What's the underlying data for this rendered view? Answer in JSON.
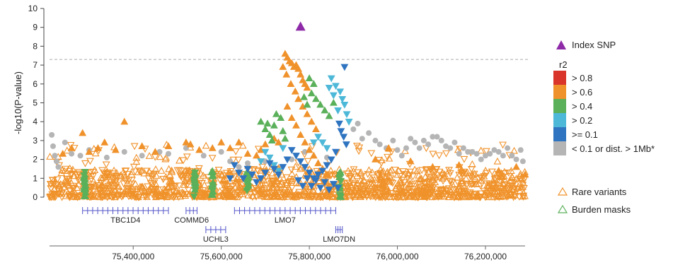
{
  "chart_data": {
    "type": "scatter",
    "title": "",
    "xlabel": "",
    "ylabel": "-log10(P-value)",
    "xlim": [
      75210000,
      76290000
    ],
    "ylim": [
      0,
      10
    ],
    "x_ticks": [
      75400000,
      75600000,
      75800000,
      76000000,
      76200000
    ],
    "x_tick_labels": [
      "75,400,000",
      "75,600,000",
      "75,800,000",
      "76,000,000",
      "76,200,000"
    ],
    "y_ticks": [
      0,
      1,
      2,
      3,
      4,
      5,
      6,
      7,
      8,
      9,
      10
    ],
    "y_tick_labels": [
      "0",
      "1",
      "2",
      "3",
      "4",
      "5",
      "6",
      "7",
      "8",
      "9",
      "10"
    ],
    "significance_line": 7.3,
    "grid": false,
    "legend_position": "right",
    "colors": {
      "index": "#8e2aa8",
      "r2_08": "#d9352b",
      "r2_06": "#f0922b",
      "r2_04": "#5bb05a",
      "r2_02": "#4db8d8",
      "r2_01": "#2f74c0",
      "r2_low": "#b5b5b5",
      "rare": "#f0922b",
      "burden": "#5bb05a",
      "gene": "#5557c9"
    },
    "index_snp": {
      "x": 75780000,
      "y": 9.05
    },
    "series": [
      {
        "name": "< 0.1 or dist. > 1Mb*",
        "marker": "circle",
        "color": "#b5b5b5",
        "points": [
          [
            75215000,
            3.3
          ],
          [
            75218000,
            2.7
          ],
          [
            75222000,
            2.2
          ],
          [
            75226000,
            1.9
          ],
          [
            75230000,
            1.6
          ],
          [
            75245000,
            2.9
          ],
          [
            75260000,
            2.3
          ],
          [
            75280000,
            2.2
          ],
          [
            75300000,
            2.5
          ],
          [
            75340000,
            2.1
          ],
          [
            75380000,
            2.4
          ],
          [
            75420000,
            2.2
          ],
          [
            75460000,
            2.4
          ],
          [
            75480000,
            2.3
          ],
          [
            75520000,
            2.6
          ],
          [
            75560000,
            2.2
          ],
          [
            75600000,
            2.4
          ],
          [
            75620000,
            1.9
          ],
          [
            75640000,
            1.6
          ],
          [
            75660000,
            1.8
          ],
          [
            75700000,
            1.9
          ],
          [
            75760000,
            2.0
          ],
          [
            75790000,
            2.4
          ],
          [
            75840000,
            2.1
          ],
          [
            75900000,
            3.6
          ],
          [
            75910000,
            3.9
          ],
          [
            75920000,
            3.1
          ],
          [
            75935000,
            3.4
          ],
          [
            75950000,
            3.0
          ],
          [
            75960000,
            2.8
          ],
          [
            75975000,
            2.6
          ],
          [
            75990000,
            3.0
          ],
          [
            76000000,
            2.5
          ],
          [
            76010000,
            2.2
          ],
          [
            76020000,
            2.6
          ],
          [
            76030000,
            3.1
          ],
          [
            76040000,
            2.9
          ],
          [
            76050000,
            2.6
          ],
          [
            76060000,
            3.0
          ],
          [
            76070000,
            2.8
          ],
          [
            76080000,
            3.2
          ],
          [
            76090000,
            3.2
          ],
          [
            76100000,
            3.0
          ],
          [
            76110000,
            2.7
          ],
          [
            76120000,
            2.6
          ],
          [
            76130000,
            2.9
          ],
          [
            76140000,
            2.3
          ],
          [
            76150000,
            2.6
          ],
          [
            76160000,
            2.4
          ],
          [
            76170000,
            2.4
          ],
          [
            76180000,
            2.3
          ],
          [
            76190000,
            2.0
          ],
          [
            76200000,
            2.2
          ],
          [
            76210000,
            2.3
          ],
          [
            76220000,
            2.5
          ],
          [
            76230000,
            2.4
          ],
          [
            76240000,
            2.2
          ],
          [
            76250000,
            2.6
          ],
          [
            76260000,
            2.2
          ],
          [
            76270000,
            2.0
          ],
          [
            76280000,
            2.5
          ],
          [
            76285000,
            1.9
          ]
        ]
      },
      {
        "name": "> 0.6",
        "marker": "triangle-up",
        "color": "#f0922b",
        "points": [
          [
            75745000,
            7.6
          ],
          [
            75750000,
            7.4
          ],
          [
            75755000,
            7.2
          ],
          [
            75760000,
            7.1
          ],
          [
            75765000,
            6.9
          ],
          [
            75770000,
            7.0
          ],
          [
            75775000,
            6.8
          ],
          [
            75780000,
            6.5
          ],
          [
            75785000,
            6.2
          ],
          [
            75790000,
            6.0
          ],
          [
            75795000,
            5.8
          ],
          [
            75740000,
            6.9
          ],
          [
            75748000,
            6.5
          ],
          [
            75758000,
            6.0
          ],
          [
            75768000,
            5.6
          ],
          [
            75775000,
            5.2
          ],
          [
            75785000,
            4.8
          ],
          [
            75795000,
            4.4
          ],
          [
            75805000,
            4.0
          ],
          [
            75815000,
            3.6
          ],
          [
            75750000,
            4.8
          ],
          [
            75760000,
            4.2
          ],
          [
            75770000,
            3.8
          ],
          [
            75780000,
            3.3
          ],
          [
            75790000,
            2.9
          ],
          [
            75800000,
            2.5
          ],
          [
            75810000,
            2.2
          ],
          [
            75820000,
            1.8
          ],
          [
            75830000,
            1.5
          ],
          [
            75840000,
            1.2
          ],
          [
            75700000,
            2.8
          ],
          [
            75690000,
            2.5
          ],
          [
            75680000,
            2.2
          ],
          [
            75720000,
            3.1
          ],
          [
            75730000,
            2.9
          ],
          [
            75380000,
            4.0
          ],
          [
            75285000,
            3.4
          ],
          [
            75335000,
            2.9
          ],
          [
            75320000,
            2.6
          ],
          [
            75520000,
            2.9
          ],
          [
            75530000,
            2.8
          ],
          [
            75550000,
            2.5
          ],
          [
            75580000,
            2.6
          ],
          [
            75600000,
            2.9
          ],
          [
            75620000,
            2.6
          ],
          [
            75640000,
            2.9
          ],
          [
            75660000,
            2.3
          ],
          [
            75480000,
            2.7
          ],
          [
            75450000,
            2.4
          ],
          [
            75420000,
            2.7
          ],
          [
            75360000,
            2.5
          ],
          [
            75300000,
            2.4
          ],
          [
            75260000,
            2.6
          ],
          [
            75240000,
            2.3
          ],
          [
            75950000,
            2.0
          ],
          [
            75980000,
            2.6
          ],
          [
            76030000,
            1.9
          ],
          [
            76080000,
            1.6
          ],
          [
            76140000,
            1.7
          ],
          [
            76230000,
            1.4
          ],
          [
            76270000,
            1.6
          ],
          [
            76290000,
            1.2
          ]
        ]
      },
      {
        "name": "> 0.4",
        "marker": "triangle-up",
        "color": "#5bb05a",
        "points": [
          [
            75690000,
            4.0
          ],
          [
            75700000,
            3.6
          ],
          [
            75710000,
            3.3
          ],
          [
            75720000,
            3.8
          ],
          [
            75725000,
            4.4
          ],
          [
            75735000,
            4.2
          ],
          [
            75740000,
            3.5
          ],
          [
            75745000,
            3.1
          ],
          [
            75705000,
            3.9
          ],
          [
            75715000,
            3.0
          ],
          [
            75800000,
            6.3
          ],
          [
            75810000,
            6.0
          ],
          [
            75805000,
            5.5
          ],
          [
            75815000,
            5.2
          ],
          [
            75825000,
            4.9
          ],
          [
            75835000,
            4.6
          ],
          [
            75845000,
            4.3
          ],
          [
            75855000,
            5.0
          ],
          [
            75795000,
            4.9
          ],
          [
            75788000,
            5.3
          ],
          [
            75290000,
            1.2
          ],
          [
            75290000,
            0.8
          ],
          [
            75290000,
            0.4
          ],
          [
            75540000,
            1.2
          ],
          [
            75540000,
            0.8
          ],
          [
            75540000,
            0.4
          ],
          [
            75580000,
            1.1
          ],
          [
            75580000,
            0.7
          ],
          [
            75660000,
            1.0
          ],
          [
            75660000,
            0.6
          ]
        ]
      },
      {
        "name": "> 0.2",
        "marker": "triangle-down",
        "color": "#4db8d8",
        "points": [
          [
            75850000,
            6.3
          ],
          [
            75860000,
            5.9
          ],
          [
            75870000,
            5.6
          ],
          [
            75875000,
            5.2
          ],
          [
            75880000,
            4.9
          ],
          [
            75885000,
            4.4
          ],
          [
            75890000,
            4.0
          ],
          [
            75865000,
            4.6
          ],
          [
            75855000,
            5.4
          ],
          [
            75845000,
            5.8
          ],
          [
            75700000,
            2.4
          ],
          [
            75710000,
            2.1
          ],
          [
            75720000,
            1.7
          ],
          [
            75730000,
            1.4
          ],
          [
            75740000,
            2.6
          ],
          [
            75690000,
            1.9
          ],
          [
            75820000,
            3.2
          ],
          [
            75830000,
            2.9
          ],
          [
            75840000,
            2.6
          ],
          [
            75810000,
            2.9
          ]
        ]
      },
      {
        "name": ">= 0.1",
        "marker": "triangle-down",
        "color": "#2f74c0",
        "points": [
          [
            75880000,
            6.9
          ],
          [
            75868000,
            3.9
          ],
          [
            75872000,
            3.5
          ],
          [
            75878000,
            3.2
          ],
          [
            75884000,
            2.8
          ],
          [
            75860000,
            2.4
          ],
          [
            75850000,
            2.0
          ],
          [
            75840000,
            1.7
          ],
          [
            75830000,
            1.4
          ],
          [
            75820000,
            1.2
          ],
          [
            75810000,
            1.0
          ],
          [
            75800000,
            1.3
          ],
          [
            75790000,
            1.6
          ],
          [
            75780000,
            1.9
          ],
          [
            75770000,
            2.2
          ],
          [
            75760000,
            2.5
          ],
          [
            75750000,
            2.0
          ],
          [
            75740000,
            1.6
          ],
          [
            75730000,
            1.2
          ],
          [
            75720000,
            1.5
          ],
          [
            75710000,
            1.8
          ],
          [
            75700000,
            1.3
          ],
          [
            75690000,
            1.0
          ],
          [
            75680000,
            0.8
          ],
          [
            75670000,
            1.2
          ],
          [
            75660000,
            1.5
          ],
          [
            75650000,
            1.0
          ],
          [
            75640000,
            1.3
          ],
          [
            75630000,
            1.7
          ],
          [
            75620000,
            1.0
          ],
          [
            75775000,
            0.9
          ],
          [
            75785000,
            0.6
          ],
          [
            75795000,
            1.0
          ],
          [
            75805000,
            0.6
          ],
          [
            75815000,
            0.9
          ],
          [
            75825000,
            0.5
          ],
          [
            75835000,
            0.8
          ],
          [
            75845000,
            0.4
          ],
          [
            75855000,
            0.7
          ],
          [
            75865000,
            0.5
          ]
        ]
      }
    ],
    "background_bands": {
      "orange_density_top": 1.5,
      "note": ""
    }
  },
  "genes": {
    "track1": [
      {
        "name": "TBC1D4",
        "start": 75285000,
        "end": 75480000
      },
      {
        "name": "COMMD6",
        "start": 75520000,
        "end": 75545000
      },
      {
        "name": "LMO7",
        "start": 75630000,
        "end": 75860000
      }
    ],
    "track2": [
      {
        "name": "UCHL3",
        "start": 75565000,
        "end": 75610000
      },
      {
        "name": "LMO7DN",
        "start": 75860000,
        "end": 75875000
      }
    ]
  },
  "legend": {
    "index_label": "Index SNP",
    "r2_title": "r2",
    "r2_items": [
      {
        "label": "> 0.8",
        "color": "#d9352b"
      },
      {
        "label": "> 0.6",
        "color": "#f0922b"
      },
      {
        "label": "> 0.4",
        "color": "#5bb05a"
      },
      {
        "label": "> 0.2",
        "color": "#4db8d8"
      },
      {
        "label": ">= 0.1",
        "color": "#2f74c0"
      },
      {
        "label": "< 0.1 or dist. > 1Mb*",
        "color": "#b5b5b5"
      }
    ],
    "rare_label": "Rare variants",
    "burden_label": "Burden masks"
  }
}
